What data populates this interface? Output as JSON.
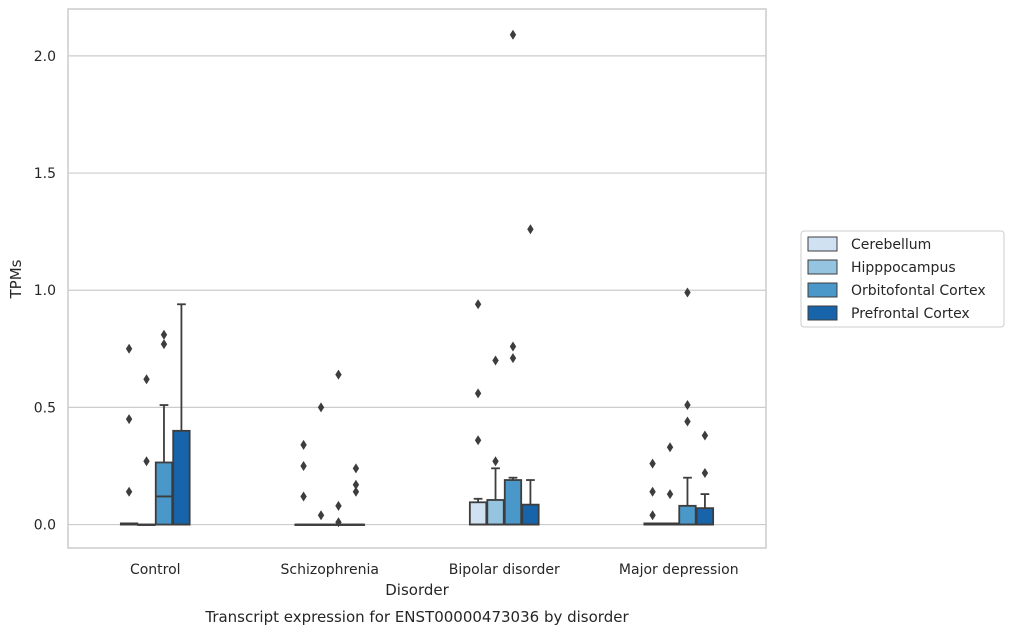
{
  "caption": "Transcript expression for ENST00000473036 by disorder",
  "chart_data": {
    "type": "boxplot",
    "xlabel": "Disorder",
    "ylabel": "TPMs",
    "ylim": [
      -0.1,
      2.2
    ],
    "yticks": [
      "0.0",
      "0.5",
      "1.0",
      "1.5",
      "2.0"
    ],
    "grid": "horizontal",
    "legend_placement": "right",
    "categories": [
      "Control",
      "Schizophrenia",
      "Bipolar disorder",
      "Major depression"
    ],
    "series": [
      {
        "name": "Cerebellum",
        "color": "#d0e1f2",
        "boxes": [
          {
            "q1": 0.0,
            "median": 0.0,
            "q3": 0.005,
            "whislo": 0.0,
            "whishi": 0.005,
            "fliers": [
              0.75,
              0.45,
              0.14
            ]
          },
          {
            "q1": 0.0,
            "median": 0.0,
            "q3": 0.0,
            "whislo": 0.0,
            "whishi": 0.0,
            "fliers": [
              0.34,
              0.25,
              0.12
            ]
          },
          {
            "q1": 0.0,
            "median": 0.0,
            "q3": 0.095,
            "whislo": 0.0,
            "whishi": 0.11,
            "fliers": [
              0.94,
              0.56,
              0.36
            ]
          },
          {
            "q1": 0.0,
            "median": 0.0,
            "q3": 0.005,
            "whislo": 0.0,
            "whishi": 0.005,
            "fliers": [
              0.26,
              0.14,
              0.04
            ]
          }
        ]
      },
      {
        "name": "Hipppocampus",
        "color": "#94c4df",
        "boxes": [
          {
            "q1": 0.0,
            "median": 0.0,
            "q3": 0.0,
            "whislo": 0.0,
            "whishi": 0.0,
            "fliers": [
              0.62,
              0.27
            ]
          },
          {
            "q1": 0.0,
            "median": 0.0,
            "q3": 0.0,
            "whislo": 0.0,
            "whishi": 0.0,
            "fliers": [
              0.5,
              0.04
            ]
          },
          {
            "q1": 0.0,
            "median": 0.0,
            "q3": 0.105,
            "whislo": 0.0,
            "whishi": 0.24,
            "fliers": [
              0.7,
              0.27
            ]
          },
          {
            "q1": 0.0,
            "median": 0.0,
            "q3": 0.005,
            "whislo": 0.0,
            "whishi": 0.005,
            "fliers": [
              0.33,
              0.13
            ]
          }
        ]
      },
      {
        "name": "Orbitofontal Cortex",
        "color": "#4a98c9",
        "boxes": [
          {
            "q1": 0.0,
            "median": 0.12,
            "q3": 0.265,
            "whislo": 0.0,
            "whishi": 0.51,
            "fliers": [
              0.81,
              0.77
            ]
          },
          {
            "q1": 0.0,
            "median": 0.0,
            "q3": 0.0,
            "whislo": 0.0,
            "whishi": 0.0,
            "fliers": [
              0.64,
              0.08,
              0.01
            ]
          },
          {
            "q1": 0.0,
            "median": 0.0,
            "q3": 0.19,
            "whislo": 0.0,
            "whishi": 0.2,
            "fliers": [
              2.09,
              0.76,
              0.71
            ]
          },
          {
            "q1": 0.0,
            "median": 0.0,
            "q3": 0.08,
            "whislo": 0.0,
            "whishi": 0.2,
            "fliers": [
              0.99,
              0.51,
              0.44
            ]
          }
        ]
      },
      {
        "name": "Prefrontal Cortex",
        "color": "#1764ab",
        "boxes": [
          {
            "q1": 0.0,
            "median": 0.0,
            "q3": 0.4,
            "whislo": 0.0,
            "whishi": 0.94,
            "fliers": []
          },
          {
            "q1": 0.0,
            "median": 0.0,
            "q3": 0.0,
            "whislo": 0.0,
            "whishi": 0.0,
            "fliers": [
              0.24,
              0.17,
              0.14
            ]
          },
          {
            "q1": 0.0,
            "median": 0.0,
            "q3": 0.085,
            "whislo": 0.0,
            "whishi": 0.19,
            "fliers": [
              1.26
            ]
          },
          {
            "q1": 0.0,
            "median": 0.0,
            "q3": 0.07,
            "whislo": 0.0,
            "whishi": 0.13,
            "fliers": [
              0.38,
              0.22
            ]
          }
        ]
      }
    ]
  }
}
